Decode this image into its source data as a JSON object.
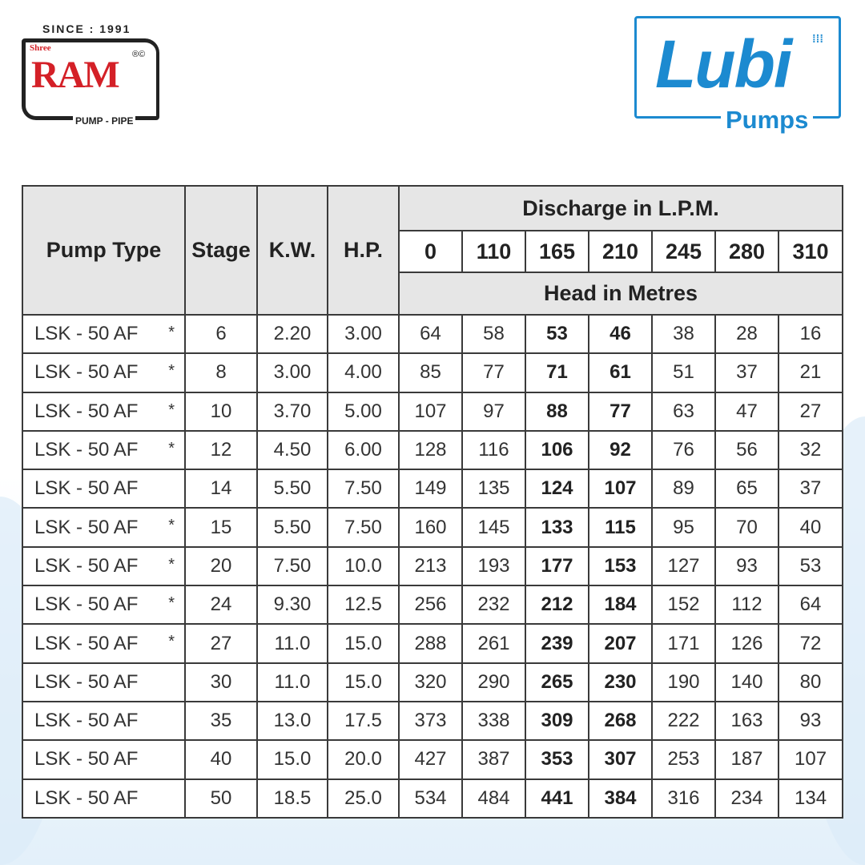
{
  "logos": {
    "ram": {
      "since": "SINCE : 1991",
      "shree": "Shree",
      "name": "RAM",
      "reg": "®©",
      "tagline": "PUMP - PIPE"
    },
    "lubi": {
      "name": "Lubi",
      "tagline": "Pumps"
    }
  },
  "colors": {
    "ram_red": "#d42027",
    "lubi_blue": "#1c8ad0",
    "header_bg": "#e6e6e6"
  },
  "table": {
    "headers": {
      "pump_type": "Pump Type",
      "stage": "Stage",
      "kw": "K.W.",
      "hp": "H.P.",
      "discharge": "Discharge in L.P.M.",
      "head": "Head in Metres",
      "flows": [
        "0",
        "110",
        "165",
        "210",
        "245",
        "280",
        "310"
      ]
    },
    "rows": [
      {
        "type": "LSK - 50 AF",
        "star": "*",
        "stage": "6",
        "kw": "2.20",
        "hp": "3.00",
        "head": [
          "64",
          "58",
          "53",
          "46",
          "38",
          "28",
          "16"
        ]
      },
      {
        "type": "LSK - 50 AF",
        "star": "*",
        "stage": "8",
        "kw": "3.00",
        "hp": "4.00",
        "head": [
          "85",
          "77",
          "71",
          "61",
          "51",
          "37",
          "21"
        ]
      },
      {
        "type": "LSK - 50 AF",
        "star": "*",
        "stage": "10",
        "kw": "3.70",
        "hp": "5.00",
        "head": [
          "107",
          "97",
          "88",
          "77",
          "63",
          "47",
          "27"
        ]
      },
      {
        "type": "LSK - 50 AF",
        "star": "*",
        "stage": "12",
        "kw": "4.50",
        "hp": "6.00",
        "head": [
          "128",
          "116",
          "106",
          "92",
          "76",
          "56",
          "32"
        ]
      },
      {
        "type": "LSK - 50 AF",
        "star": "",
        "stage": "14",
        "kw": "5.50",
        "hp": "7.50",
        "head": [
          "149",
          "135",
          "124",
          "107",
          "89",
          "65",
          "37"
        ]
      },
      {
        "type": "LSK - 50 AF",
        "star": "*",
        "stage": "15",
        "kw": "5.50",
        "hp": "7.50",
        "head": [
          "160",
          "145",
          "133",
          "115",
          "95",
          "70",
          "40"
        ]
      },
      {
        "type": "LSK - 50 AF",
        "star": "*",
        "stage": "20",
        "kw": "7.50",
        "hp": "10.0",
        "head": [
          "213",
          "193",
          "177",
          "153",
          "127",
          "93",
          "53"
        ]
      },
      {
        "type": "LSK - 50 AF",
        "star": "*",
        "stage": "24",
        "kw": "9.30",
        "hp": "12.5",
        "head": [
          "256",
          "232",
          "212",
          "184",
          "152",
          "112",
          "64"
        ]
      },
      {
        "type": "LSK - 50 AF",
        "star": "*",
        "stage": "27",
        "kw": "11.0",
        "hp": "15.0",
        "head": [
          "288",
          "261",
          "239",
          "207",
          "171",
          "126",
          "72"
        ]
      },
      {
        "type": "LSK - 50 AF",
        "star": "",
        "stage": "30",
        "kw": "11.0",
        "hp": "15.0",
        "head": [
          "320",
          "290",
          "265",
          "230",
          "190",
          "140",
          "80"
        ]
      },
      {
        "type": "LSK - 50 AF",
        "star": "",
        "stage": "35",
        "kw": "13.0",
        "hp": "17.5",
        "head": [
          "373",
          "338",
          "309",
          "268",
          "222",
          "163",
          "93"
        ]
      },
      {
        "type": "LSK - 50 AF",
        "star": "",
        "stage": "40",
        "kw": "15.0",
        "hp": "20.0",
        "head": [
          "427",
          "387",
          "353",
          "307",
          "253",
          "187",
          "107"
        ]
      },
      {
        "type": "LSK - 50 AF",
        "star": "",
        "stage": "50",
        "kw": "18.5",
        "hp": "25.0",
        "head": [
          "534",
          "484",
          "441",
          "384",
          "316",
          "234",
          "134"
        ]
      }
    ]
  }
}
